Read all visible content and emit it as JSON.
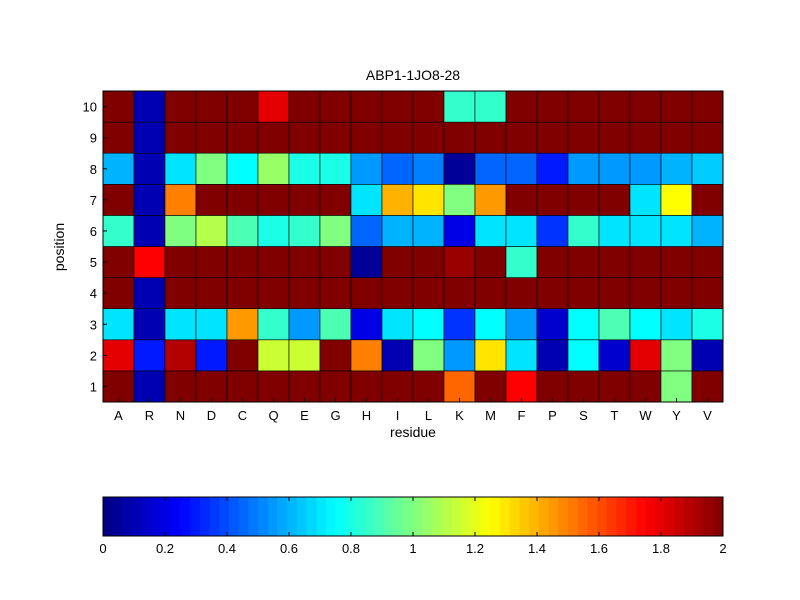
{
  "chart_data": {
    "type": "heatmap",
    "title": "ABP1-1JO8-28",
    "xlabel": "residue",
    "ylabel": "position",
    "x_categories": [
      "A",
      "R",
      "N",
      "D",
      "C",
      "Q",
      "E",
      "G",
      "H",
      "I",
      "L",
      "K",
      "M",
      "F",
      "P",
      "S",
      "T",
      "W",
      "Y",
      "V"
    ],
    "y_categories": [
      "1",
      "2",
      "3",
      "4",
      "5",
      "6",
      "7",
      "8",
      "9",
      "10"
    ],
    "values": [
      [
        2.0,
        0.1,
        2.0,
        2.0,
        2.0,
        2.0,
        2.0,
        2.0,
        2.0,
        2.0,
        2.0,
        1.55,
        2.0,
        1.75,
        2.0,
        2.0,
        2.0,
        2.0,
        1.0,
        2.0
      ],
      [
        1.8,
        0.3,
        1.9,
        0.3,
        2.0,
        1.15,
        1.15,
        2.0,
        1.5,
        0.1,
        1.0,
        0.55,
        1.3,
        0.7,
        0.1,
        0.75,
        0.15,
        1.8,
        1.0,
        0.1
      ],
      [
        0.7,
        0.1,
        0.7,
        0.7,
        1.45,
        0.85,
        0.55,
        0.9,
        0.2,
        0.7,
        0.75,
        0.35,
        0.75,
        0.55,
        0.15,
        0.75,
        0.9,
        0.75,
        0.7,
        0.8
      ],
      [
        2.0,
        0.1,
        2.0,
        2.0,
        2.0,
        2.0,
        2.0,
        2.0,
        2.0,
        2.0,
        2.0,
        2.0,
        2.0,
        2.0,
        2.0,
        2.0,
        2.0,
        2.0,
        2.0,
        2.0
      ],
      [
        2.0,
        1.75,
        2.0,
        2.0,
        2.0,
        2.0,
        2.0,
        2.0,
        0.05,
        2.0,
        2.0,
        1.95,
        2.0,
        0.85,
        2.0,
        2.0,
        2.0,
        2.0,
        2.0,
        2.0
      ],
      [
        0.85,
        0.1,
        1.0,
        1.1,
        0.9,
        0.8,
        0.85,
        1.0,
        0.45,
        0.6,
        0.6,
        0.2,
        0.7,
        0.7,
        0.35,
        0.85,
        0.7,
        0.7,
        0.7,
        0.6
      ],
      [
        2.0,
        0.1,
        1.5,
        2.0,
        2.0,
        2.0,
        2.0,
        2.0,
        0.7,
        1.4,
        1.3,
        1.0,
        1.45,
        2.0,
        2.0,
        2.0,
        2.0,
        0.7,
        1.25,
        2.0
      ],
      [
        0.6,
        0.1,
        0.7,
        1.0,
        0.75,
        1.05,
        0.8,
        0.8,
        0.55,
        0.45,
        0.5,
        0.05,
        0.45,
        0.45,
        0.3,
        0.55,
        0.55,
        0.55,
        0.6,
        0.65
      ],
      [
        2.0,
        0.1,
        2.0,
        2.0,
        2.0,
        2.0,
        2.0,
        2.0,
        2.0,
        2.0,
        2.0,
        2.0,
        2.0,
        2.0,
        2.0,
        2.0,
        2.0,
        2.0,
        2.0,
        2.0
      ],
      [
        2.0,
        0.1,
        2.0,
        2.0,
        2.0,
        1.8,
        2.0,
        2.0,
        2.0,
        2.0,
        2.0,
        0.85,
        0.85,
        2.0,
        2.0,
        2.0,
        2.0,
        2.0,
        2.0,
        2.0
      ]
    ],
    "colorbar": {
      "range": [
        0,
        2
      ],
      "ticks": [
        "0",
        "0.2",
        "0.4",
        "0.6",
        "0.8",
        "1",
        "1.2",
        "1.4",
        "1.6",
        "1.8",
        "2"
      ],
      "colormap": "jet",
      "placement": "bottom"
    },
    "grid": false
  }
}
